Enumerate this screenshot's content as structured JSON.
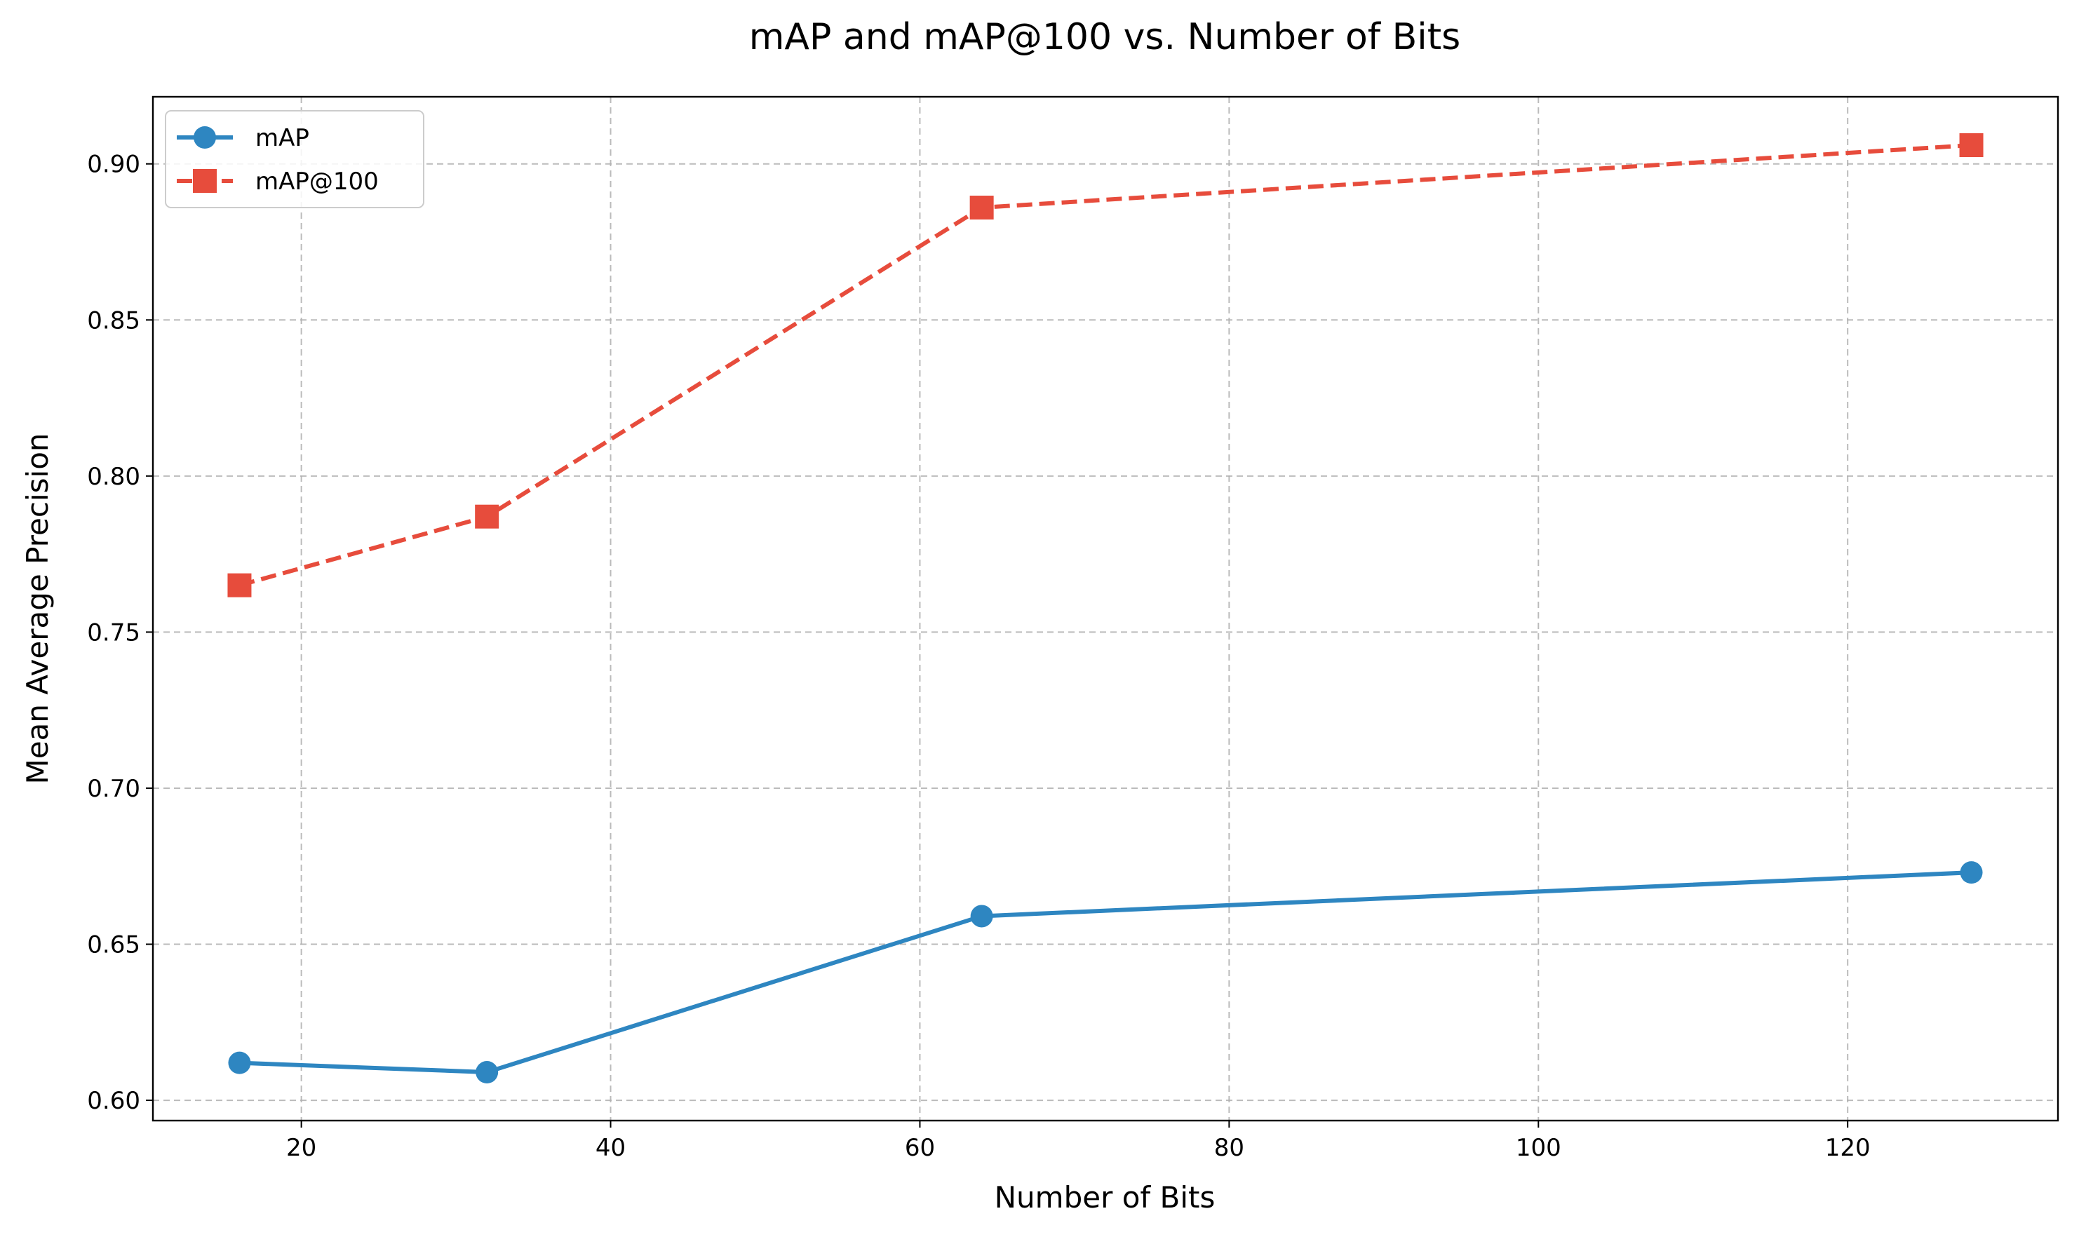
{
  "chart_data": {
    "type": "line",
    "title": "mAP and mAP@100 vs. Number of Bits",
    "xlabel": "Number of Bits",
    "ylabel": "Mean Average Precision",
    "x": [
      16,
      32,
      64,
      128
    ],
    "xlim": [
      10.4,
      133.6
    ],
    "ylim": [
      0.5935,
      0.9215
    ],
    "xticks": [
      20,
      40,
      60,
      80,
      100,
      120
    ],
    "xtick_labels": [
      "20",
      "40",
      "60",
      "80",
      "100",
      "120"
    ],
    "yticks": [
      0.6,
      0.65,
      0.7,
      0.75,
      0.8,
      0.85,
      0.9
    ],
    "ytick_labels": [
      "0.60",
      "0.65",
      "0.70",
      "0.75",
      "0.80",
      "0.85",
      "0.90"
    ],
    "grid": true,
    "legend_position": "top-left",
    "series": [
      {
        "name": "mAP",
        "values": [
          0.612,
          0.609,
          0.659,
          0.673
        ],
        "color": "#2e86c1",
        "marker": "circle",
        "line_style": "solid"
      },
      {
        "name": "mAP@100",
        "values": [
          0.765,
          0.787,
          0.886,
          0.906
        ],
        "color": "#e74c3c",
        "marker": "square",
        "line_style": "dashed"
      }
    ]
  }
}
